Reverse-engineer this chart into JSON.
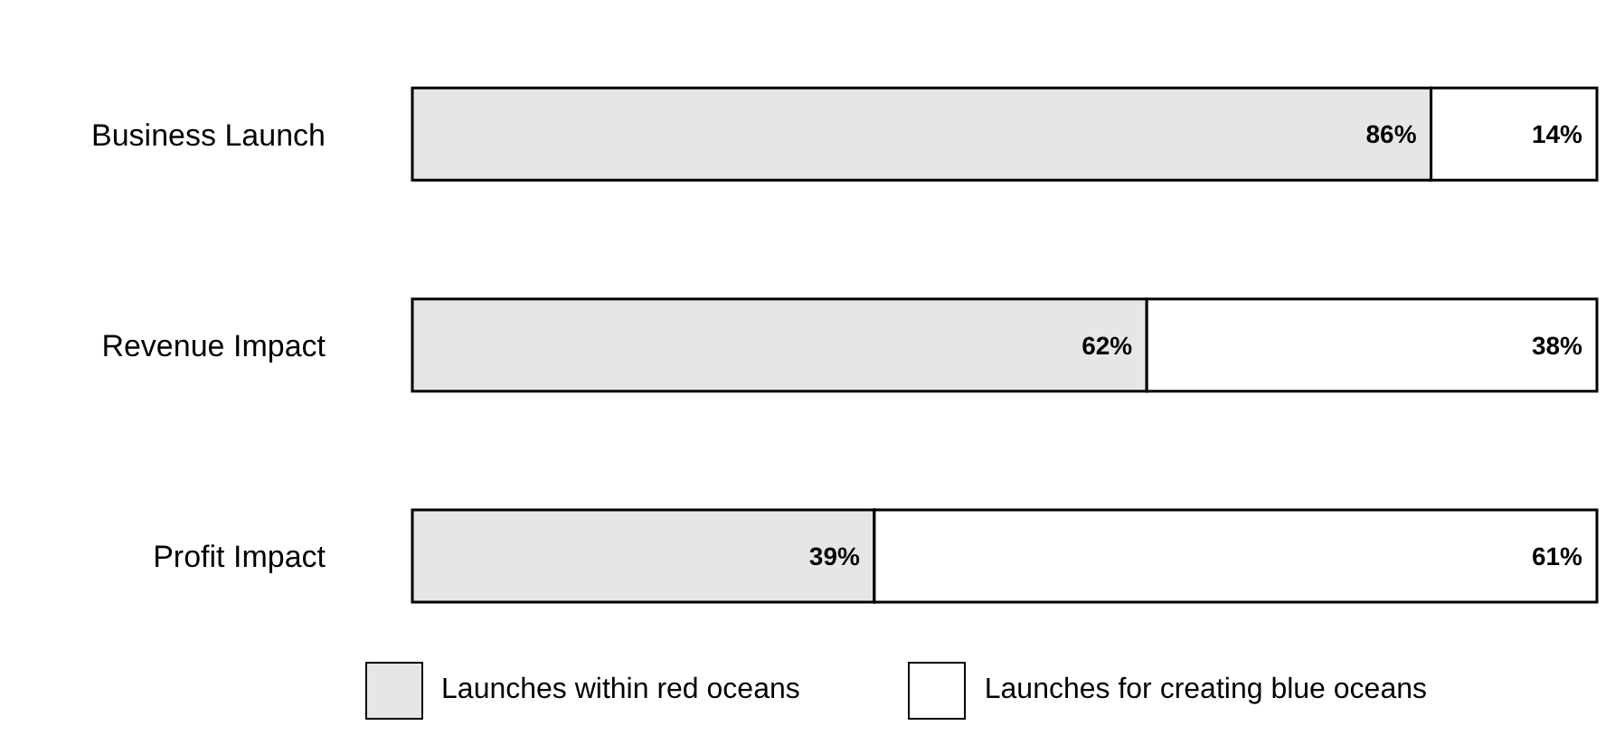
{
  "chart_data": {
    "type": "bar",
    "orientation": "horizontal",
    "stacked": true,
    "categories": [
      "Business Launch",
      "Revenue Impact",
      "Profit Impact"
    ],
    "series": [
      {
        "name": "Launches within red oceans",
        "color": "#e6e6e6",
        "values": [
          86,
          62,
          39
        ],
        "value_labels": [
          "86%",
          "62%",
          "39%"
        ]
      },
      {
        "name": "Launches for creating blue oceans",
        "color": "#ffffff",
        "values": [
          14,
          38,
          61
        ],
        "value_labels": [
          "14%",
          "38%",
          "61%"
        ]
      }
    ],
    "legend": "bottom"
  }
}
